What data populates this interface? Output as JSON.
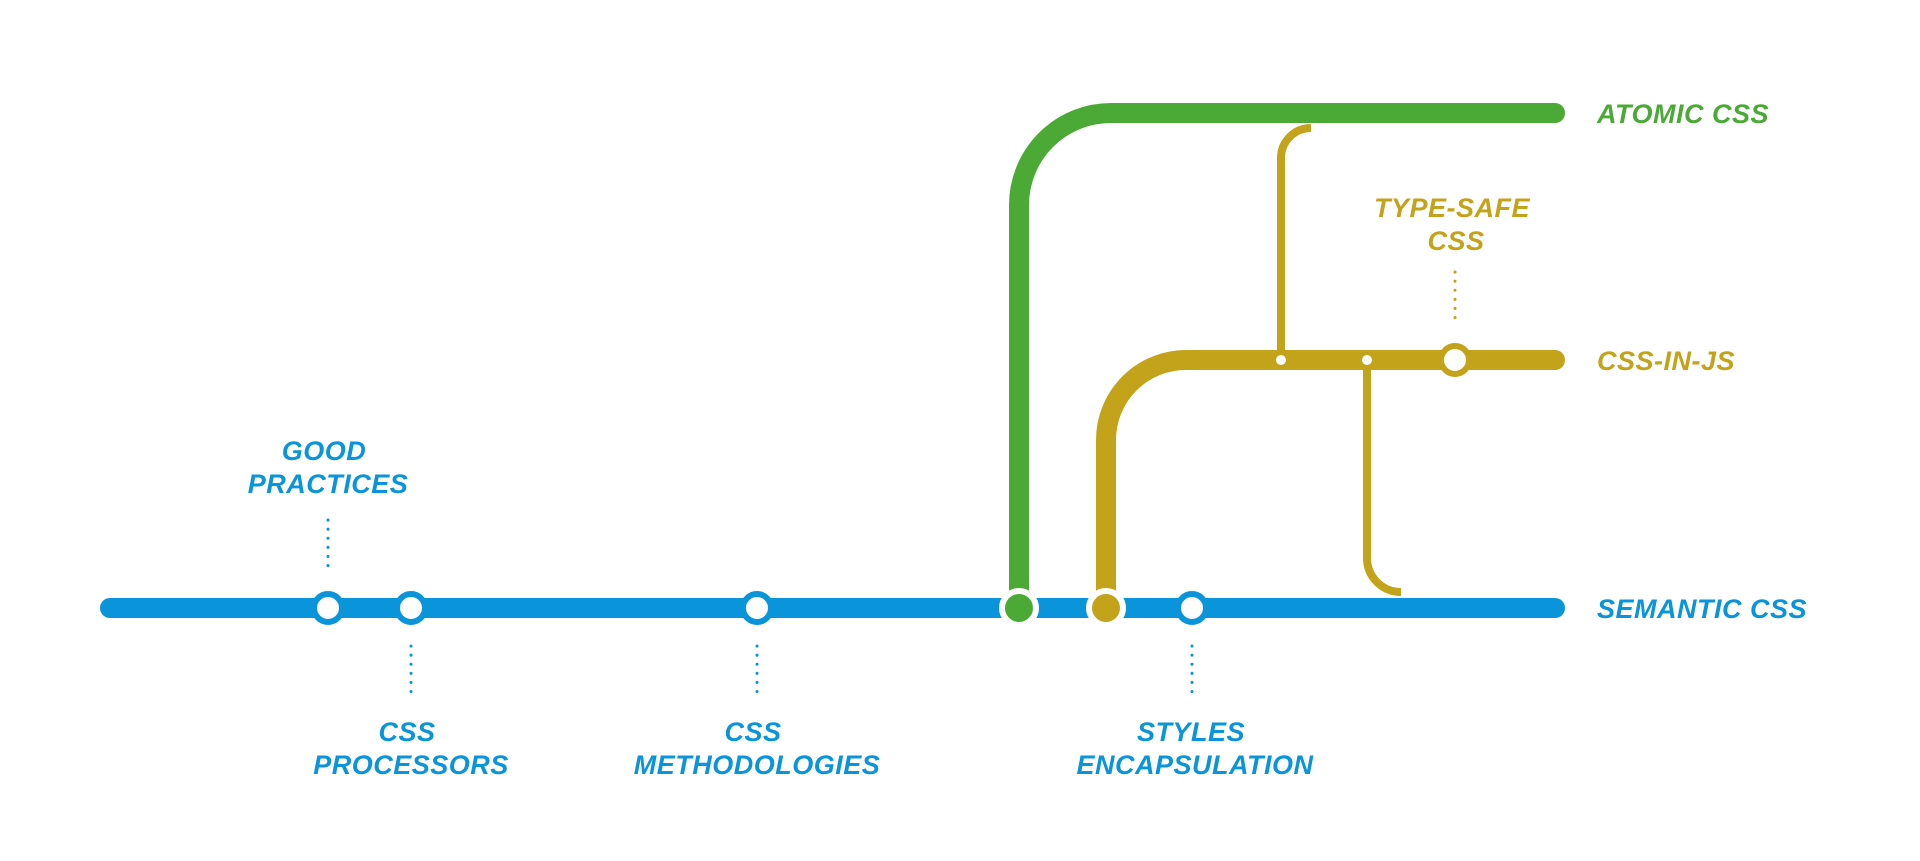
{
  "colors": {
    "semantic": "#0A94DA",
    "atomic": "#4BAA36",
    "cssinjs": "#C3A31A",
    "background": "#FFFFFF"
  },
  "lines": {
    "atomic": "ATOMIC CSS",
    "cssinjs": "CSS-IN-JS",
    "semantic": "SEMANTIC CSS"
  },
  "stations": {
    "good_practices": [
      "GOOD",
      "PRACTICES"
    ],
    "css_processors": [
      "CSS",
      "PROCESSORS"
    ],
    "css_methodologies": [
      "CSS",
      "METHODOLOGIES"
    ],
    "styles_encapsulation": [
      "STYLES",
      "ENCAPSULATION"
    ],
    "type_safe_css": [
      "TYPE-SAFE",
      "CSS"
    ]
  }
}
